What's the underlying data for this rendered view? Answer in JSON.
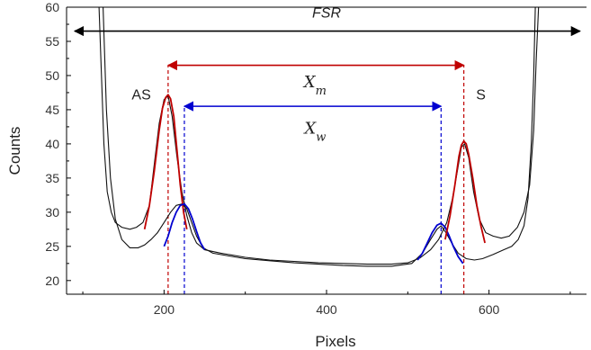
{
  "chart_data": {
    "type": "line",
    "xlabel": "Pixels",
    "ylabel": "Counts",
    "xlim": [
      80,
      720
    ],
    "ylim": [
      18,
      60
    ],
    "xticks": [
      200,
      400,
      600
    ],
    "yticks": [
      20,
      25,
      30,
      35,
      40,
      45,
      50,
      55,
      60
    ],
    "grid": false,
    "series": [
      {
        "color": "#111111",
        "points": [
          [
            120,
            60
          ],
          [
            123,
            50
          ],
          [
            126,
            40
          ],
          [
            130,
            33
          ],
          [
            135,
            30
          ],
          [
            140,
            28.5
          ],
          [
            148,
            27.8
          ],
          [
            158,
            27.5
          ],
          [
            166,
            27.8
          ],
          [
            174,
            28.5
          ],
          [
            182,
            31
          ],
          [
            188,
            37
          ],
          [
            194,
            43
          ],
          [
            200,
            46.5
          ],
          [
            205,
            47
          ],
          [
            210,
            44
          ],
          [
            216,
            38
          ],
          [
            222,
            33
          ],
          [
            228,
            29.5
          ],
          [
            234,
            27
          ],
          [
            240,
            25.5
          ],
          [
            250,
            24.5
          ],
          [
            270,
            24
          ],
          [
            300,
            23.4
          ],
          [
            330,
            23
          ],
          [
            360,
            22.8
          ],
          [
            390,
            22.6
          ],
          [
            420,
            22.5
          ],
          [
            450,
            22.4
          ],
          [
            480,
            22.4
          ],
          [
            500,
            22.6
          ],
          [
            515,
            23.3
          ],
          [
            528,
            24.5
          ],
          [
            538,
            26
          ],
          [
            548,
            28.5
          ],
          [
            555,
            32
          ],
          [
            561,
            36
          ],
          [
            566,
            39.5
          ],
          [
            570,
            40
          ],
          [
            575,
            38
          ],
          [
            581,
            33
          ],
          [
            588,
            29
          ],
          [
            596,
            27
          ],
          [
            605,
            26.5
          ],
          [
            615,
            26.2
          ],
          [
            625,
            26.5
          ],
          [
            635,
            27.8
          ],
          [
            643,
            30
          ],
          [
            650,
            34
          ],
          [
            655,
            42
          ],
          [
            658,
            52
          ],
          [
            661,
            60
          ]
        ]
      },
      {
        "color": "#111111",
        "points": [
          [
            125,
            60
          ],
          [
            129,
            45
          ],
          [
            134,
            35
          ],
          [
            140,
            29
          ],
          [
            148,
            26
          ],
          [
            158,
            24.8
          ],
          [
            168,
            24.8
          ],
          [
            176,
            25.2
          ],
          [
            184,
            26
          ],
          [
            192,
            27
          ],
          [
            200,
            28.5
          ],
          [
            208,
            30
          ],
          [
            215,
            31
          ],
          [
            222,
            31.2
          ],
          [
            228,
            30.5
          ],
          [
            234,
            28.5
          ],
          [
            240,
            26.5
          ],
          [
            248,
            24.8
          ],
          [
            260,
            24
          ],
          [
            280,
            23.6
          ],
          [
            300,
            23.2
          ],
          [
            330,
            22.9
          ],
          [
            360,
            22.6
          ],
          [
            390,
            22.4
          ],
          [
            420,
            22.2
          ],
          [
            450,
            22.1
          ],
          [
            480,
            22.1
          ],
          [
            505,
            22.5
          ],
          [
            518,
            24
          ],
          [
            528,
            26
          ],
          [
            536,
            27.5
          ],
          [
            541,
            28
          ],
          [
            547,
            27
          ],
          [
            554,
            25.5
          ],
          [
            562,
            24
          ],
          [
            572,
            23.2
          ],
          [
            582,
            23
          ],
          [
            592,
            23.2
          ],
          [
            605,
            23.8
          ],
          [
            618,
            24.5
          ],
          [
            628,
            25
          ],
          [
            636,
            26
          ],
          [
            643,
            28
          ],
          [
            648,
            32
          ],
          [
            652,
            40
          ],
          [
            655,
            50
          ],
          [
            657,
            60
          ]
        ]
      }
    ],
    "fits": [
      {
        "color": "#c00000",
        "points": [
          [
            176,
            27.5
          ],
          [
            182,
            31
          ],
          [
            188,
            36
          ],
          [
            194,
            42
          ],
          [
            198,
            45.2
          ],
          [
            202,
            46.8
          ],
          [
            205,
            47.2
          ],
          [
            208,
            46.6
          ],
          [
            212,
            44
          ],
          [
            216,
            39
          ],
          [
            220,
            34
          ],
          [
            224,
            30
          ],
          [
            228,
            27.5
          ]
        ]
      },
      {
        "color": "#0000d0",
        "points": [
          [
            200,
            25
          ],
          [
            205,
            26.5
          ],
          [
            210,
            28.5
          ],
          [
            215,
            30
          ],
          [
            220,
            31
          ],
          [
            225,
            31.2
          ],
          [
            230,
            30.5
          ],
          [
            235,
            29
          ],
          [
            240,
            27.2
          ],
          [
            245,
            25.5
          ],
          [
            250,
            24.5
          ]
        ]
      },
      {
        "color": "#0000d0",
        "points": [
          [
            512,
            23
          ],
          [
            518,
            24
          ],
          [
            524,
            25.5
          ],
          [
            530,
            27
          ],
          [
            536,
            28.1
          ],
          [
            541,
            28.4
          ],
          [
            546,
            27.8
          ],
          [
            551,
            26.5
          ],
          [
            556,
            25
          ],
          [
            562,
            23.5
          ],
          [
            568,
            22.5
          ]
        ]
      },
      {
        "color": "#c00000",
        "points": [
          [
            546,
            26
          ],
          [
            552,
            29.5
          ],
          [
            558,
            34
          ],
          [
            563,
            38.2
          ],
          [
            566,
            39.8
          ],
          [
            569,
            40.4
          ],
          [
            572,
            40
          ],
          [
            575,
            38.5
          ],
          [
            580,
            35
          ],
          [
            585,
            31
          ],
          [
            590,
            28
          ],
          [
            595,
            25.5
          ]
        ]
      }
    ],
    "markers": [
      {
        "x": 205,
        "color": "#c00000"
      },
      {
        "x": 569,
        "color": "#c00000"
      },
      {
        "x": 225,
        "color": "#0000d0"
      },
      {
        "x": 541,
        "color": "#0000d0"
      }
    ],
    "arrows": [
      {
        "x1": 90,
        "x2": 712,
        "y": 56.5,
        "color": "#000000"
      },
      {
        "x1": 205,
        "x2": 569,
        "y": 51.5,
        "color": "#c00000"
      },
      {
        "x1": 225,
        "x2": 541,
        "y": 45.5,
        "color": "#0000d0"
      }
    ],
    "annotations": [
      {
        "text": "FSR",
        "x": 400,
        "y": 58.5,
        "style": "annot-fsr"
      },
      {
        "text": "AS",
        "x": 172,
        "y": 46.5,
        "style": "annot"
      },
      {
        "text": "S",
        "x": 590,
        "y": 46.5,
        "style": "annot"
      },
      {
        "text": "X",
        "sub": "m",
        "x": 386,
        "y": 48.3,
        "style": "annot-it"
      },
      {
        "text": "X",
        "sub": "w",
        "x": 386,
        "y": 41.5,
        "style": "annot-it"
      }
    ]
  }
}
